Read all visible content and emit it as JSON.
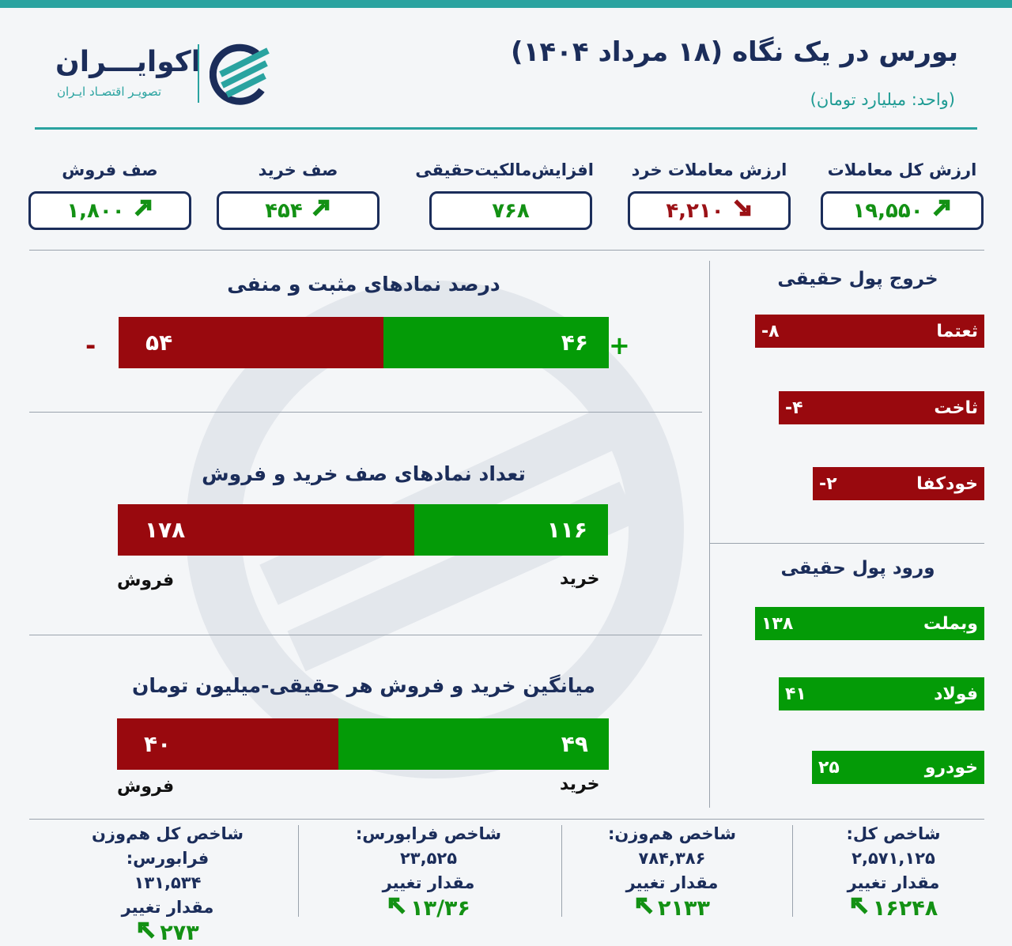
{
  "header": {
    "title": "بورس در یک نگاه (۱۸ مرداد ۱۴۰۴)",
    "unit": "(واحد: میلیارد تومان)"
  },
  "logo": {
    "name": "اکوایـــران",
    "tagline": "تصویـر اقتصـاد ایـران"
  },
  "kpis": [
    {
      "label": "ارزش کل معاملات",
      "value": "۱۹,۵۵۰",
      "trend": "up"
    },
    {
      "label": "ارزش معاملات خرد",
      "value": "۴,۲۱۰",
      "trend": "down"
    },
    {
      "label": "افزایش‌مالکیت‌حقیقی",
      "value": "۷۶۸",
      "trend": "none"
    },
    {
      "label": "صف خرید",
      "value": "۴۵۴",
      "trend": "up"
    },
    {
      "label": "صف فروش",
      "value": "۱,۸۰۰",
      "trend": "up"
    }
  ],
  "percent_symbols": {
    "title": "درصد نمادهای مثبت و منفی",
    "negative": "۵۴",
    "positive": "۴۶",
    "neg_value": 54,
    "pos_value": 46,
    "minus": "-",
    "plus": "+"
  },
  "queues": {
    "title": "تعداد نمادهای صف خرید و فروش",
    "sell": "۱۷۸",
    "buy": "۱۱۶",
    "sell_value": 178,
    "buy_value": 116,
    "sell_label": "فروش",
    "buy_label": "خرید"
  },
  "average": {
    "title": "میانگین خرید و فروش هر حقیقی-میلیون تومان",
    "sell": "۴۰",
    "buy": "۴۹",
    "sell_value": 40,
    "buy_value": 49,
    "sell_label": "فروش",
    "buy_label": "خرید"
  },
  "outflow": {
    "title": "خروج پول حقیقی",
    "items": [
      {
        "name": "ثعتما",
        "value": "-۸",
        "num": 8
      },
      {
        "name": "ثاخت",
        "value": "-۴",
        "num": 4
      },
      {
        "name": "خودکفا",
        "value": "-۲",
        "num": 2
      }
    ]
  },
  "inflow": {
    "title": "ورود پول حقیقی",
    "items": [
      {
        "name": "وبملت",
        "value": "۱۳۸",
        "num": 138
      },
      {
        "name": "فولاد",
        "value": "۴۱",
        "num": 41
      },
      {
        "name": "خودرو",
        "value": "۲۵",
        "num": 25
      }
    ]
  },
  "indices": [
    {
      "name": "شاخص کل:",
      "value": "۲,۵۷۱,۱۲۵",
      "change_label": "مقدار تغییر",
      "change": "۱۶۲۴۸"
    },
    {
      "name": "شاخص هم‌وزن:",
      "value": "۷۸۴,۳۸۶",
      "change_label": "مقدار تغییر",
      "change": "۲۱۳۳"
    },
    {
      "name": "شاخص فرابورس:",
      "value": "۲۳,۵۲۵",
      "change_label": "مقدار تغییر",
      "change": "۱۳/۳۶"
    },
    {
      "name": "شاخص کل هم‌وزن فرابورس:",
      "value": "۱۳۱,۵۳۴",
      "change_label": "مقدار تغییر",
      "change": "۲۷۳"
    }
  ],
  "colors": {
    "red": "#99090e",
    "green": "#049b07",
    "navy": "#1b2d5a",
    "teal": "#2aa3a0"
  }
}
